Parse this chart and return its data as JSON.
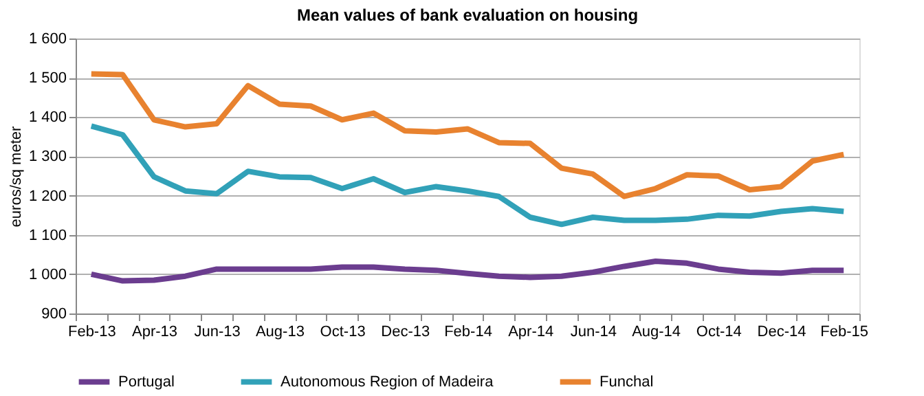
{
  "chart_data": {
    "type": "line",
    "title": "Mean values of bank evaluation on housing",
    "ylabel": "euros/sq meter",
    "categories": [
      "Feb-13",
      null,
      "Apr-13",
      null,
      "Jun-13",
      null,
      "Aug-13",
      null,
      "Oct-13",
      null,
      "Dec-13",
      null,
      "Feb-14",
      null,
      "Apr-14",
      null,
      "Jun-14",
      null,
      "Aug-14",
      null,
      "Oct-14",
      null,
      "Dec-14",
      null,
      "Feb-15"
    ],
    "series": [
      {
        "name": "Portugal",
        "color": "#6b3d8f",
        "values": [
          1000,
          983,
          985,
          995,
          1013,
          1013,
          1013,
          1013,
          1018,
          1018,
          1013,
          1010,
          1002,
          995,
          992,
          995,
          1005,
          1020,
          1033,
          1028,
          1013,
          1005,
          1003,
          1010,
          1010
        ]
      },
      {
        "name": "Autonomous Region of Madeira",
        "color": "#31a1b8",
        "values": [
          1377,
          1355,
          1248,
          1212,
          1205,
          1262,
          1248,
          1246,
          1218,
          1243,
          1208,
          1223,
          1212,
          1198,
          1145,
          1127,
          1145,
          1137,
          1137,
          1140,
          1150,
          1148,
          1160,
          1167,
          1160
        ]
      },
      {
        "name": "Funchal",
        "color": "#e8822f",
        "values": [
          1510,
          1508,
          1393,
          1375,
          1383,
          1480,
          1433,
          1428,
          1393,
          1410,
          1365,
          1362,
          1370,
          1335,
          1333,
          1270,
          1255,
          1198,
          1218,
          1253,
          1250,
          1215,
          1223,
          1288,
          1305
        ]
      }
    ],
    "ylim": [
      900,
      1600
    ],
    "yticks": [
      {
        "value": 900,
        "label": "900"
      },
      {
        "value": 1000,
        "label": "1 000"
      },
      {
        "value": 1100,
        "label": "1 100"
      },
      {
        "value": 1200,
        "label": "1 200"
      },
      {
        "value": 1300,
        "label": "1 300"
      },
      {
        "value": 1400,
        "label": "1 400"
      },
      {
        "value": 1500,
        "label": "1 500"
      },
      {
        "value": 1600,
        "label": "1 600"
      }
    ],
    "grid": "y",
    "legend": "bottom",
    "marker": "none",
    "line_style": "solid"
  }
}
